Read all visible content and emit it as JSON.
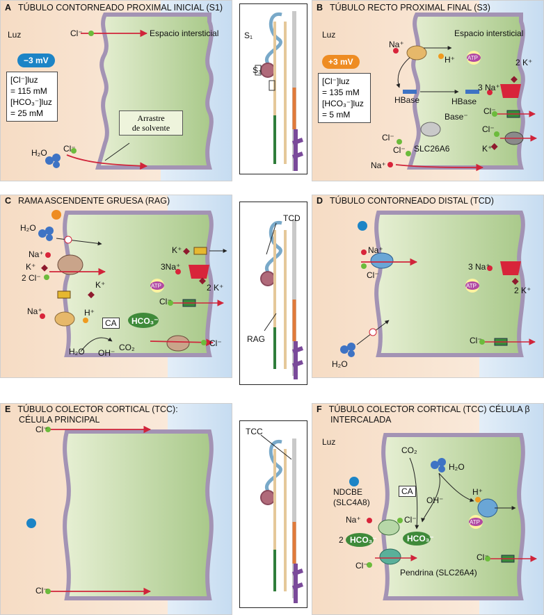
{
  "colors": {
    "lumen": "#f6dcc4",
    "cell": "#cde0b0",
    "interstitial": "#d4e5f5",
    "membrane": "#a393b4",
    "na": "#d8243a",
    "cl": "#6cbb3c",
    "k": "#8e1a2e",
    "h": "#ef9a1f",
    "arrow": "#d0243a",
    "neg": "#1c84c6",
    "pos": "#ee8c22",
    "atp": "#b14aa3",
    "hco3": "#3f8a3a"
  },
  "panels": {
    "A": {
      "letter": "A",
      "title": "TÚBULO CONTORNEADO PROXIMAL INICIAL (S1)",
      "lumen": "Luz",
      "interstitial": "Espacio intersticial",
      "voltage": "−3 mV",
      "cl_lum_1": "[Cl⁻]luz",
      "cl_lum_2": "= 115 mM",
      "hco3_lum_1": "[HCO₃⁻]luz",
      "hco3_lum_2": "= 25 mM",
      "cl": "Cl⁻",
      "cl2": "Cl⁻",
      "h2o": "H₂O",
      "drag_1": "Arrastre",
      "drag_2": "de solvente"
    },
    "A_neph": {
      "s1": "S₁",
      "s3": "S₃"
    },
    "B": {
      "letter": "B",
      "title": "TÚBULO RECTO PROXIMAL FINAL (S3)",
      "lumen": "Luz",
      "interstitial": "Espacio intersticial",
      "voltage": "+3 mV",
      "cl_lum_1": "[Cl⁻]luz",
      "cl_lum_2": "= 135 mM",
      "hco3_lum_1": "[HCO₃⁻]luz",
      "hco3_lum_2": "= 5 mM",
      "na_top": "Na⁺",
      "h": "H⁺",
      "hbase1": "HBase",
      "hbase2": "HBase",
      "base": "Base⁻",
      "cl_lum": "Cl⁻",
      "cl_lum2": "Cl⁻",
      "slc": "SLC26A6",
      "na_bottom": "Na⁺",
      "k2": "2 K⁺",
      "na3": "3 Na⁺",
      "cl_baso": "Cl⁻",
      "cl_baso2": "Cl⁻",
      "k": "K⁺",
      "atp": "ATP"
    },
    "C": {
      "letter": "C",
      "title": "RAMA ASCENDENTE GRUESA (RAG)",
      "h2o": "H₂O",
      "na": "Na⁺",
      "k": "K⁺",
      "cl2": "2 Cl⁻",
      "k_out": "K⁺",
      "na2": "Na⁺",
      "h": "H⁺",
      "ca": "CA",
      "hco3": "HCO₃⁻",
      "h2o2": "H₂O",
      "oh": "OH⁻",
      "co2": "CO₂",
      "k_baso": "K⁺",
      "na3": "3Na⁺",
      "k2": "2 K⁺",
      "cl_baso": "Cl⁻",
      "cl_baso2": "Cl⁻",
      "atp": "ATP"
    },
    "C_neph": {
      "tcd": "TCD",
      "rag": "RAG"
    },
    "D": {
      "letter": "D",
      "title": "TÚBULO CONTORNEADO DISTAL (TCD)",
      "na": "Na⁺",
      "cl": "Cl⁻",
      "na3": "3 Na⁺",
      "k2": "2 K⁺",
      "cl_baso": "Cl⁻",
      "h2o": "H₂O",
      "atp": "ATP"
    },
    "E": {
      "letter": "E",
      "title_1": "TÚBULO COLECTOR CORTICAL (TCC):",
      "title_2": "CÉLULA PRINCIPAL",
      "cl_top": "Cl⁻",
      "cl_bottom": "Cl⁻"
    },
    "E_neph": {
      "tcc": "TCC"
    },
    "F": {
      "letter": "F",
      "title_1": "TÚBULO COLECTOR CORTICAL (TCC) CÉLULA β",
      "title_2": "INTERCALADA",
      "lumen": "Luz",
      "co2": "CO₂",
      "h2o": "H₂O",
      "ndcbe_1": "NDCBE",
      "ndcbe_2": "(SLC4A8)",
      "na": "Na⁺",
      "cl": "Cl⁻",
      "ca": "CA",
      "oh": "OH⁻",
      "h": "H⁺",
      "hco3_2": "2",
      "hco3_a": "HCO₃⁻",
      "hco3_b": "HCO₃⁻",
      "cl_lum": "Cl⁻",
      "pendrin": "Pendrina (SLC26A4)",
      "cl_baso": "Cl⁻",
      "atp": "ATP"
    }
  }
}
